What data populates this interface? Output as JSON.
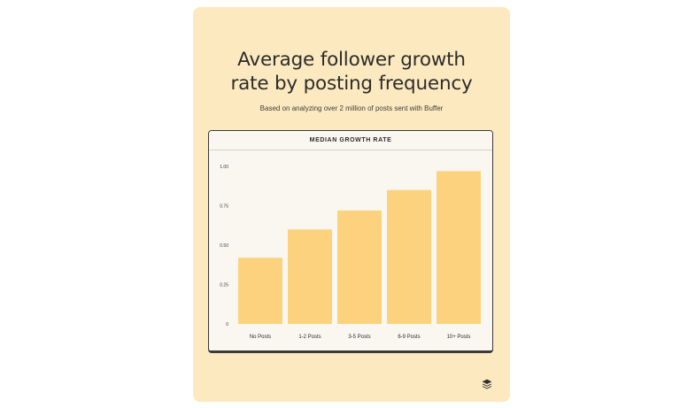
{
  "card": {
    "title": "Average follower growth\nrate by posting frequency",
    "subtitle": "Based on analyzing over 2 million of posts sent with Buffer",
    "logo_icon": "buffer-logo-icon"
  },
  "chart_data": {
    "type": "bar",
    "title": "MEDIAN GROWTH RATE",
    "categories": [
      "No Posts",
      "1-2 Posts",
      "3-5 Posts",
      "6-9 Posts",
      "10+ Posts"
    ],
    "values": [
      0.42,
      0.6,
      0.72,
      0.85,
      0.97
    ],
    "yticks": [
      "0",
      "0.25",
      "0.50",
      "0.75",
      "1.00"
    ],
    "ylim": [
      0,
      1
    ],
    "xlabel": "",
    "ylabel": "",
    "grid": false,
    "bar_color": "#fdd27f"
  }
}
